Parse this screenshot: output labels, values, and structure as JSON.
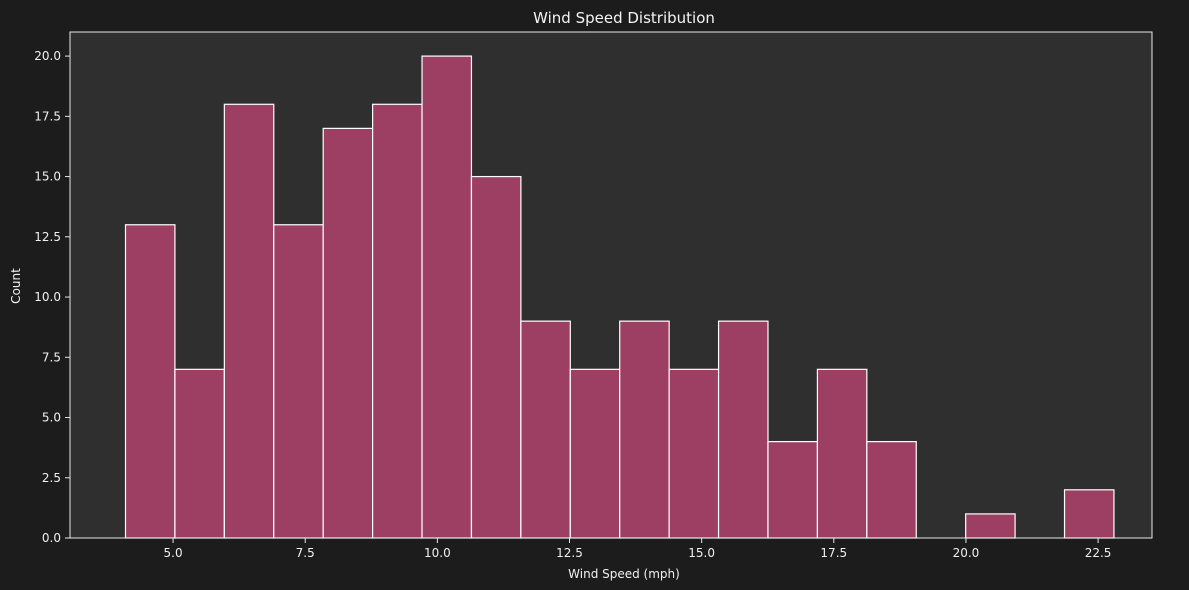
{
  "chart_data": {
    "type": "bar",
    "title": "Wind Speed Distribution",
    "xlabel": "Wind Speed (mph)",
    "ylabel": "Count",
    "xlim": [
      3.05,
      23.52
    ],
    "ylim": [
      0,
      21
    ],
    "grid": false,
    "bin_start": 4.1,
    "bin_width": 0.935,
    "values": [
      13,
      7,
      18,
      13,
      17,
      18,
      20,
      15,
      9,
      7,
      9,
      7,
      9,
      4,
      7,
      4,
      0,
      1,
      0,
      2
    ],
    "x_ticks": [
      5.0,
      7.5,
      10.0,
      12.5,
      15.0,
      17.5,
      20.0,
      22.5
    ],
    "x_tick_labels": [
      "5.0",
      "7.5",
      "10.0",
      "12.5",
      "15.0",
      "17.5",
      "20.0",
      "22.5"
    ],
    "y_ticks": [
      0,
      2.5,
      5,
      7.5,
      10,
      12.5,
      15,
      17.5,
      20
    ],
    "y_tick_labels": [
      "0.0",
      "2.5",
      "5.0",
      "7.5",
      "10.0",
      "12.5",
      "15.0",
      "17.5",
      "20.0"
    ]
  },
  "colors": {
    "figure_background": "#1c1c1c",
    "plot_background": "#2f2f2f",
    "bar_fill": "#9c3f62",
    "bar_edge": "#ffffff",
    "axis": "#e8e8e8",
    "text": "#f0f0f0"
  }
}
